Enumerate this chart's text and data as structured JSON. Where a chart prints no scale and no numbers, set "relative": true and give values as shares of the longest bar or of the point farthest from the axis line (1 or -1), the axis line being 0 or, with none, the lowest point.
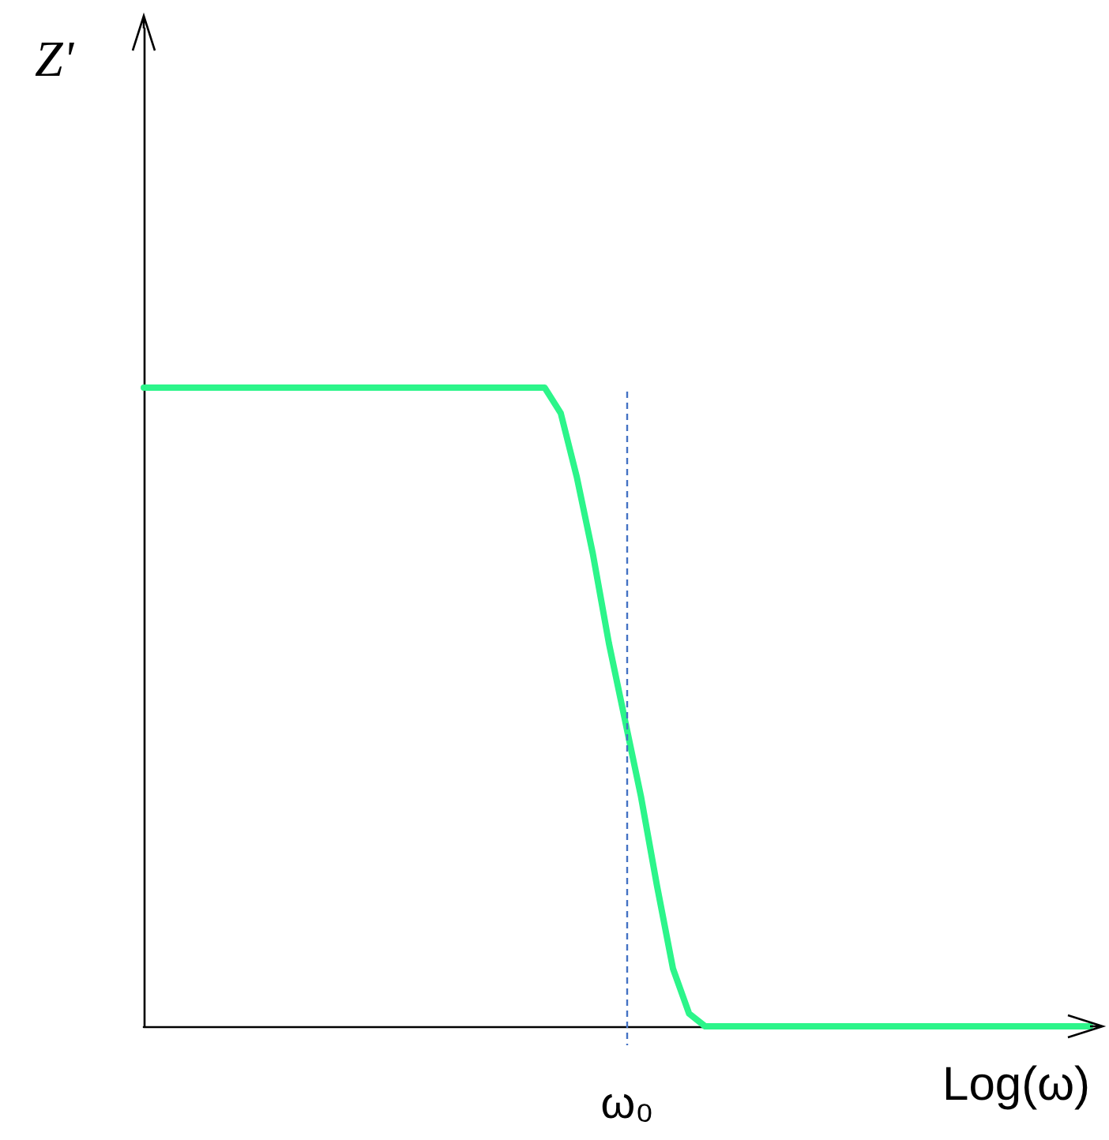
{
  "chart_data": {
    "type": "line",
    "relative": true,
    "xlabel": "Log(ω)",
    "categories": [
      null,
      null,
      null,
      null,
      null,
      null,
      null,
      null,
      null,
      null,
      null,
      null,
      null,
      null,
      null,
      null,
      null,
      null,
      null,
      null,
      null,
      null,
      null,
      null,
      null,
      null,
      null,
      null,
      null,
      null,
      null,
      null,
      null,
      null,
      null,
      null,
      null,
      null,
      null,
      null,
      null,
      null,
      null,
      null,
      null,
      null,
      null,
      null,
      null,
      null,
      null,
      null,
      null,
      null,
      null,
      null,
      null,
      null,
      null,
      null
    ],
    "series": [
      {
        "color": "#2cf58a",
        "values": [
          1,
          1,
          1,
          1,
          1,
          1,
          1,
          1,
          1,
          1,
          1,
          1,
          1,
          1,
          1,
          1,
          1,
          1,
          1,
          1,
          1,
          1,
          1,
          1,
          1,
          1,
          0.96,
          0.86,
          0.74,
          0.6,
          0.48,
          0.36,
          0.22,
          0.09,
          0.02,
          0,
          0,
          0,
          0,
          0,
          0,
          0,
          0,
          0,
          0,
          0,
          0,
          0,
          0,
          0,
          0,
          0,
          0,
          0,
          0,
          0,
          0,
          0,
          0,
          0
        ]
      }
    ],
    "annotations": [
      "ω₀",
      "Z'"
    ],
    "grid": false,
    "marker": "none",
    "line_style": "solid"
  }
}
